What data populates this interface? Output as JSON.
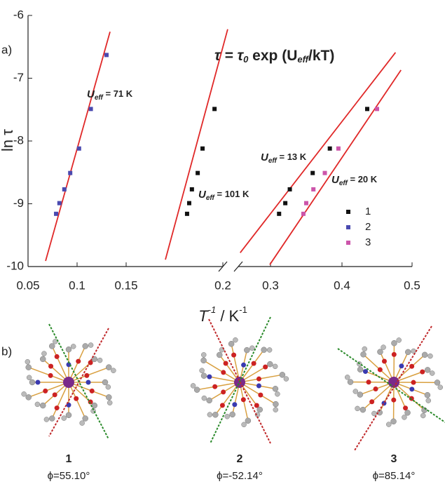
{
  "panel_a_label": "a)",
  "panel_b_label": "b)",
  "chart_data": {
    "type": "scatter",
    "formula": {
      "lhs": "τ = τ",
      "lhs_sub": "0",
      "mid": " exp (U",
      "mid_sub": "eff",
      "rhs": "/kT)"
    },
    "ylabel": "ln τ",
    "xlabel": {
      "base": "T",
      "base_sup": "-1",
      "unit": " / K",
      "unit_sup": "-1"
    },
    "ylim": [
      -10,
      -6
    ],
    "yticks": [
      -10,
      -9,
      -8,
      -7,
      -6
    ],
    "x_segments": [
      {
        "xlim": [
          0.05,
          0.2
        ],
        "xticks": [
          0.05,
          0.1,
          0.15,
          0.2
        ]
      },
      {
        "xlim": [
          0.255,
          0.5
        ],
        "xticks": [
          0.3,
          0.4,
          0.5
        ]
      }
    ],
    "legend": "right",
    "series": [
      {
        "name": "1",
        "color": "#111111",
        "x": [
          0.1815,
          0.1826,
          0.184,
          0.187,
          0.1895,
          0.1957,
          0.312,
          0.3207,
          0.327,
          0.359,
          0.383,
          0.436
        ],
        "values": [
          -9.16,
          -8.99,
          -8.77,
          -8.51,
          -8.12,
          -7.49,
          -9.16,
          -8.99,
          -8.77,
          -8.51,
          -8.12,
          -7.49
        ]
      },
      {
        "name": "2",
        "color": "#4a4ab0",
        "x": [
          0.0786,
          0.082,
          0.087,
          0.093,
          0.102,
          0.114,
          0.13
        ],
        "values": [
          -9.16,
          -8.99,
          -8.77,
          -8.51,
          -8.12,
          -7.49,
          -6.63
        ]
      },
      {
        "name": "3",
        "color": "#cc55aa",
        "x": [
          0.346,
          0.35,
          0.36,
          0.376,
          0.395,
          0.45
        ],
        "values": [
          -9.16,
          -8.99,
          -8.77,
          -8.51,
          -8.12,
          -7.49
        ]
      }
    ],
    "fits": [
      {
        "symbol": "U",
        "sub": "eff",
        "text": " = 71 K",
        "color": "#e02828",
        "x": [
          0.0679,
          0.1336
        ],
        "values": [
          -9.91,
          -6.26
        ]
      },
      {
        "symbol": "U",
        "sub": "eff",
        "text": " = 101 K",
        "color": "#e02828",
        "x": [
          0.1703,
          0.2025
        ],
        "values": [
          -9.89,
          -6.22
        ]
      },
      {
        "symbol": "U",
        "sub": "eff",
        "text": " = 13 K",
        "color": "#e02828",
        "x": [
          0.2576,
          0.4764
        ],
        "values": [
          -9.78,
          -6.59
        ]
      },
      {
        "symbol": "U",
        "sub": "eff",
        "text": " = 20 K",
        "color": "#e02828",
        "x": [
          0.299,
          0.4842
        ],
        "values": [
          -9.97,
          -6.87
        ]
      }
    ]
  },
  "structures": [
    {
      "label": "1",
      "angle": "ϕ=55.10°"
    },
    {
      "label": "2",
      "angle": "ϕ=-52.14°"
    },
    {
      "label": "3",
      "angle": "ϕ=85.14°"
    }
  ]
}
